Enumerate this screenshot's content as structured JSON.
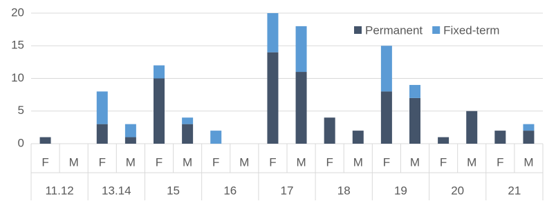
{
  "chart_data": {
    "type": "bar",
    "stacked": true,
    "categories": [
      "F",
      "M",
      "F",
      "M",
      "F",
      "M",
      "F",
      "M",
      "F",
      "M",
      "F",
      "M",
      "F",
      "M",
      "F",
      "M",
      "F",
      "M"
    ],
    "groups": [
      "11.12",
      "13.14",
      "15",
      "16",
      "17",
      "18",
      "19",
      "20",
      "21"
    ],
    "series": [
      {
        "name": "Permanent",
        "color": "#44546a",
        "values": [
          1,
          0,
          3,
          1,
          10,
          3,
          0,
          0,
          14,
          11,
          4,
          2,
          8,
          7,
          1,
          5,
          2,
          2
        ]
      },
      {
        "name": "Fixed-term",
        "color": "#5b9bd5",
        "values": [
          0,
          0,
          5,
          2,
          2,
          1,
          2,
          0,
          6,
          7,
          0,
          0,
          7,
          2,
          0,
          0,
          0,
          1
        ]
      }
    ],
    "ylim": [
      0,
      20
    ],
    "yticks": [
      0,
      5,
      10,
      15,
      20
    ],
    "grid": true,
    "legend": "top-right"
  }
}
